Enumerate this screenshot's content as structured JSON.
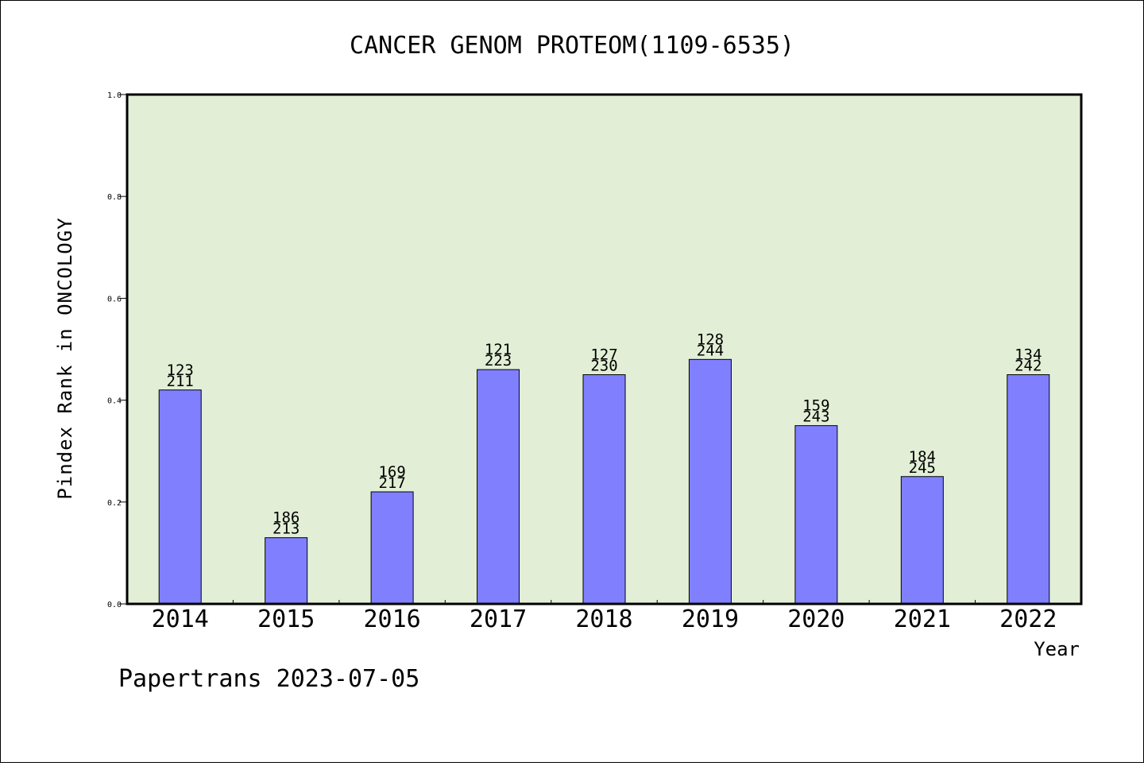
{
  "chart_data": {
    "type": "bar",
    "title": "CANCER GENOM PROTEOM(1109-6535)",
    "ylabel": "Pindex Rank in ONCOLOGY",
    "xlabel": "Year",
    "ylim": [
      0,
      1.0
    ],
    "yticks": [
      "0.0",
      "0.2",
      "0.4",
      "0.6",
      "0.8",
      "1.0"
    ],
    "ytick_values": [
      0,
      0.2,
      0.4,
      0.6,
      0.8,
      1.0
    ],
    "categories": [
      "2014",
      "2015",
      "2016",
      "2017",
      "2018",
      "2019",
      "2020",
      "2021",
      "2022"
    ],
    "values": [
      0.42,
      0.13,
      0.22,
      0.46,
      0.45,
      0.48,
      0.35,
      0.25,
      0.45
    ],
    "label_top": [
      "123",
      "186",
      "169",
      "121",
      "127",
      "128",
      "159",
      "184",
      "134"
    ],
    "label_bottom": [
      "211",
      "213",
      "217",
      "223",
      "230",
      "244",
      "243",
      "245",
      "242"
    ],
    "grid": false,
    "legend": "none",
    "colors": {
      "plot_background": "#e2efd6",
      "bar_fill": "#8080ff",
      "bar_stroke": "#000000",
      "axis": "#000000"
    }
  },
  "footer": "Papertrans 2023-07-05"
}
